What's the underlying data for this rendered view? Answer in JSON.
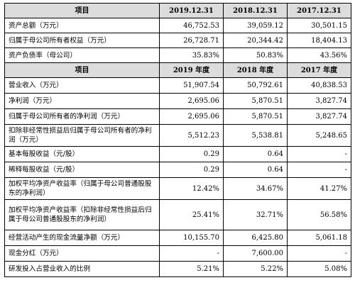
{
  "table1": {
    "headers": [
      "项目",
      "2019.12.31",
      "2018.12.31",
      "2017.12.31"
    ],
    "rows": [
      {
        "label": "资产总额（万元）",
        "v1": "46,752.53",
        "v2": "39,059.12",
        "v3": "30,501.15"
      },
      {
        "label": "归属于母公司所有者权益（万元）",
        "v1": "26,728.71",
        "v2": "20,344.42",
        "v3": "18,404.13"
      },
      {
        "label": "资产负债率（母公司）",
        "v1": "35.83%",
        "v2": "50.83%",
        "v3": "43.56%"
      }
    ]
  },
  "table2": {
    "headers": [
      "项目",
      "2019 年度",
      "2018 年度",
      "2017 年度"
    ],
    "rows": [
      {
        "label": "营业收入（万元）",
        "v1": "51,907.54",
        "v2": "50,792.61",
        "v3": "40,838.53"
      },
      {
        "label": "净利润（万元）",
        "v1": "2,695.06",
        "v2": "5,870.51",
        "v3": "3,827.74"
      },
      {
        "label": "归属于母公司所有者的净利润（万元）",
        "v1": "2,695.06",
        "v2": "5,870.51",
        "v3": "3,827.74"
      },
      {
        "label": "扣除非经常性损益后归属于母公司所有者的净利润（万元）",
        "v1": "5,512.23",
        "v2": "5,538.81",
        "v3": "5,248.65"
      },
      {
        "label": "基本每股收益（元/股）",
        "v1": "0.29",
        "v2": "0.64",
        "v3": "-"
      },
      {
        "label": "稀释每股收益（元/股）",
        "v1": "0.29",
        "v2": "0.64",
        "v3": "-"
      },
      {
        "label": "加权平均净资产收益率（归属于母公司普通股股东的净利润）",
        "v1": "12.42%",
        "v2": "34.67%",
        "v3": "41.27%"
      },
      {
        "label": "加权平均净资产收益率（扣除非经常性损益后归属于母公司普通股股东的净利润）",
        "v1": "25.41%",
        "v2": "32.71%",
        "v3": "56.58%"
      },
      {
        "label": "经营活动产生的现金流量净额（万元）",
        "v1": "10,155.70",
        "v2": "6,425.80",
        "v3": "5,061.18"
      },
      {
        "label": "现金分红（万元）",
        "v1": "-",
        "v2": "7,600.00",
        "v3": "-"
      },
      {
        "label": "研发投入占营业收入的比例",
        "v1": "5.21%",
        "v2": "5.22%",
        "v3": "5.08%"
      }
    ]
  }
}
